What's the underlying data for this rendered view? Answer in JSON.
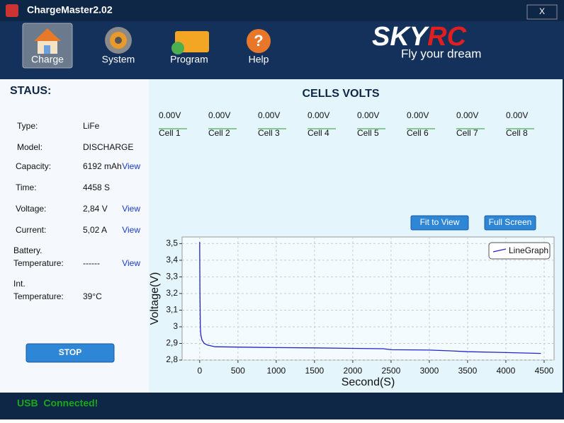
{
  "window": {
    "title": "ChargeMaster2.02",
    "close": "X"
  },
  "toolbar": {
    "buttons": [
      "Charge",
      "System",
      "Program",
      "Help"
    ]
  },
  "logo": {
    "brand_a": "SKY",
    "brand_b": "RC",
    "slogan": "Fly your dream"
  },
  "status": {
    "heading": "STAUS:",
    "rows": [
      {
        "label": [
          "Type:"
        ],
        "value": "LiFe"
      },
      {
        "label": [
          "Model:"
        ],
        "value": "DISCHARGE"
      },
      {
        "label": [
          "Capacity:"
        ],
        "value": "6192 mAh",
        "link": "View"
      },
      {
        "label": [
          "Time:"
        ],
        "value": "4458 S"
      },
      {
        "label": [
          "Voltage:"
        ],
        "value": "2,84 V",
        "link": "View"
      },
      {
        "label": [
          "Current:"
        ],
        "value": "5,02 A",
        "link": "View"
      },
      {
        "label": [
          "Battery.",
          "Temperature:"
        ],
        "value": "------",
        "link": "View"
      },
      {
        "label": [
          "Int.",
          "Temperature:"
        ],
        "value": "39°C"
      }
    ],
    "button": "STOP"
  },
  "cells": {
    "title": "CELLS VOLTS",
    "items": [
      {
        "value": "0.00V",
        "label": "Cell 1"
      },
      {
        "value": "0.00V",
        "label": "Cell 2"
      },
      {
        "value": "0.00V",
        "label": "Cell 3"
      },
      {
        "value": "0.00V",
        "label": "Cell 4"
      },
      {
        "value": "0.00V",
        "label": "Cell 5"
      },
      {
        "value": "0.00V",
        "label": "Cell 6"
      },
      {
        "value": "0.00V",
        "label": "Cell 7"
      },
      {
        "value": "0.00V",
        "label": "Cell 8"
      }
    ]
  },
  "graph_buttons": [
    "Fit to View",
    "Full Screen"
  ],
  "chart_data": {
    "type": "line",
    "x_label": "Second(S)",
    "y_label": "Voltage(V)",
    "xlim": [
      -230,
      4630
    ],
    "ylim": [
      2.8,
      3.54
    ],
    "xticks": [
      0,
      500,
      1000,
      1500,
      2000,
      2500,
      3000,
      3500,
      4000,
      4500
    ],
    "yticks": [
      {
        "value": 2.8,
        "label": "2,8"
      },
      {
        "value": 2.9,
        "label": "2,9"
      },
      3,
      {
        "value": 3.1,
        "label": "3,1"
      },
      {
        "value": 3.2,
        "label": "3,2"
      },
      {
        "value": 3.3,
        "label": "3,3"
      },
      {
        "value": 3.4,
        "label": "3,4"
      },
      {
        "value": 3.5,
        "label": "3,5"
      }
    ],
    "grid": true,
    "legend": "top-right",
    "x": [
      0,
      3,
      8,
      15,
      30,
      60,
      100,
      200,
      500,
      1000,
      1500,
      2000,
      2400,
      2500,
      3000,
      3300,
      3500,
      4000,
      4458
    ],
    "series": [
      {
        "name": "LineGraph",
        "color": "#2424c8",
        "values": [
          3.51,
          3.2,
          3.0,
          2.95,
          2.92,
          2.9,
          2.89,
          2.88,
          2.878,
          2.875,
          2.873,
          2.87,
          2.868,
          2.862,
          2.86,
          2.855,
          2.85,
          2.845,
          2.84
        ]
      }
    ]
  },
  "statusbar": {
    "text": "USB  Connected!"
  }
}
